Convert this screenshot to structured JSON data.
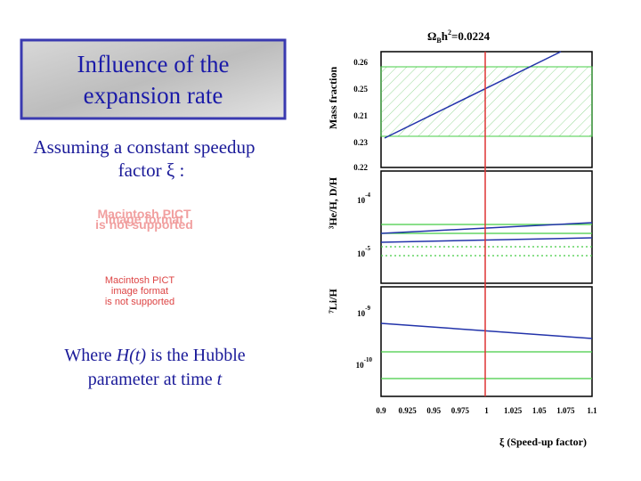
{
  "slide": {
    "title": [
      "Influence of the",
      "expansion rate"
    ],
    "intro": [
      "Assuming a constant speedup",
      "factor ξ :"
    ],
    "placeholder_large": [
      "Macintosh PICT",
      "image format",
      "is not supported"
    ],
    "placeholder_small": [
      "Macintosh PICT",
      "image format",
      "is not supported"
    ],
    "caption": {
      "line1": [
        "Where ",
        "H(t)",
        " is the Hubble"
      ],
      "line2": [
        "parameter at time ",
        "t"
      ]
    }
  },
  "figure": {
    "header": {
      "omega": "Ω",
      "sub": "B",
      "h": "h",
      "sup": "2",
      "rest": "=0.0224"
    },
    "panels": [
      {
        "ylabel": "Mass fraction",
        "ticks": [
          "0.26",
          "0.25",
          "0.21",
          "0.23",
          "0.22"
        ]
      },
      {
        "ylabel": "³He/H, D/H",
        "ticks": [
          {
            "base": "10",
            "exp": "-4"
          },
          {
            "base": "10",
            "exp": "-5"
          }
        ]
      },
      {
        "ylabel": "⁷Li/H",
        "ticks": [
          {
            "base": "10",
            "exp": "-9"
          },
          {
            "base": "10",
            "exp": "-10"
          }
        ]
      }
    ],
    "xticks": [
      "0.9",
      "0.925",
      "0.95",
      "0.975",
      "1",
      "1.025",
      "1.05",
      "1.075",
      "1.1"
    ],
    "xlabel": "ξ (Speed-up factor)"
  }
}
